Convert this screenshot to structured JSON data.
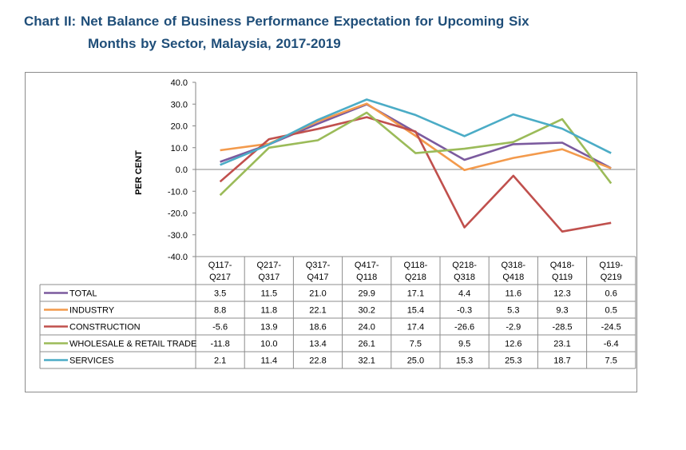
{
  "title": {
    "line1": "Chart II: Net Balance of Business Performance Expectation for Upcoming Six",
    "line2": "Months by Sector, Malaysia, 2017-2019"
  },
  "chart_data": {
    "type": "line",
    "title": "Chart II: Net Balance of Business Performance Expectation for Upcoming Six Months by Sector, Malaysia, 2017-2019",
    "xlabel": "",
    "ylabel": "PER CENT",
    "ylim": [
      -40,
      40
    ],
    "yticks": [
      "40.0",
      "30.0",
      "20.0",
      "10.0",
      "0.0",
      "-10.0",
      "-20.0",
      "-30.0",
      "-40.0"
    ],
    "ytick_values": [
      40,
      30,
      20,
      10,
      0,
      -10,
      -20,
      -30,
      -40
    ],
    "grid": false,
    "legend": "table-below",
    "categories": [
      [
        "Q117-",
        "Q217"
      ],
      [
        "Q217-",
        "Q317"
      ],
      [
        "Q317-",
        "Q417"
      ],
      [
        "Q417-",
        "Q118"
      ],
      [
        "Q118-",
        "Q218"
      ],
      [
        "Q218-",
        "Q318"
      ],
      [
        "Q318-",
        "Q418"
      ],
      [
        "Q418-",
        "Q119"
      ],
      [
        "Q119-",
        "Q219"
      ]
    ],
    "series": [
      {
        "name": "TOTAL",
        "color": "#7b5a9e",
        "values": [
          3.5,
          11.5,
          21.0,
          29.9,
          17.1,
          4.4,
          11.6,
          12.3,
          0.6
        ],
        "labels": [
          "3.5",
          "11.5",
          "21.0",
          "29.9",
          "17.1",
          "4.4",
          "11.6",
          "12.3",
          "0.6"
        ]
      },
      {
        "name": "INDUSTRY",
        "color": "#f39a4c",
        "values": [
          8.8,
          11.8,
          22.1,
          30.2,
          15.4,
          -0.3,
          5.3,
          9.3,
          0.5
        ],
        "labels": [
          "8.8",
          "11.8",
          "22.1",
          "30.2",
          "15.4",
          "-0.3",
          "5.3",
          "9.3",
          "0.5"
        ]
      },
      {
        "name": "CONSTRUCTION",
        "color": "#c0504d",
        "values": [
          -5.6,
          13.9,
          18.6,
          24.0,
          17.4,
          -26.6,
          -2.9,
          -28.5,
          -24.5
        ],
        "labels": [
          "-5.6",
          "13.9",
          "18.6",
          "24.0",
          "17.4",
          "-26.6",
          "-2.9",
          "-28.5",
          "-24.5"
        ]
      },
      {
        "name": "WHOLESALE & RETAIL TRADE",
        "color": "#9bbb59",
        "values": [
          -11.8,
          10.0,
          13.4,
          26.1,
          7.5,
          9.5,
          12.6,
          23.1,
          -6.4
        ],
        "labels": [
          "-11.8",
          "10.0",
          "13.4",
          "26.1",
          "7.5",
          "9.5",
          "12.6",
          "23.1",
          "-6.4"
        ]
      },
      {
        "name": "SERVICES",
        "color": "#4bacc6",
        "values": [
          2.1,
          11.4,
          22.8,
          32.1,
          25.0,
          15.3,
          25.3,
          18.7,
          7.5
        ],
        "labels": [
          "2.1",
          "11.4",
          "22.8",
          "32.1",
          "25.0",
          "15.3",
          "25.3",
          "18.7",
          "7.5"
        ]
      }
    ]
  }
}
